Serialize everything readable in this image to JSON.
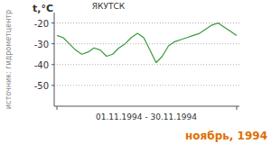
{
  "chart_data": {
    "type": "line",
    "title": "ЯКУТСК",
    "y_label": "t,°C",
    "x_label": "01.11.1994 - 30.11.1994",
    "source": "источник: гидрометцентр",
    "caption": "ноябрь, 1994",
    "categories": [
      null,
      null,
      null,
      null,
      null,
      null,
      null,
      null,
      null,
      null,
      null,
      null,
      null,
      null,
      null,
      null,
      null,
      null,
      null,
      null,
      null,
      null,
      null,
      null,
      null,
      null,
      null,
      null,
      null,
      null
    ],
    "series": [
      {
        "name": "t",
        "color": "#3a9a3a",
        "values": [
          -26,
          -27,
          -30,
          -33,
          -35,
          -34,
          -32,
          -33,
          -36,
          -35,
          -32,
          -30,
          -27,
          -25,
          -27,
          -33,
          -39,
          -36,
          -31,
          -29,
          -28,
          -27,
          -26,
          -25,
          -23,
          -21,
          -20,
          -22,
          -24,
          -26
        ]
      }
    ],
    "ylim": [
      -60,
      -15
    ],
    "yticks": [
      -50,
      -40,
      -30,
      -20
    ],
    "grid": true
  }
}
